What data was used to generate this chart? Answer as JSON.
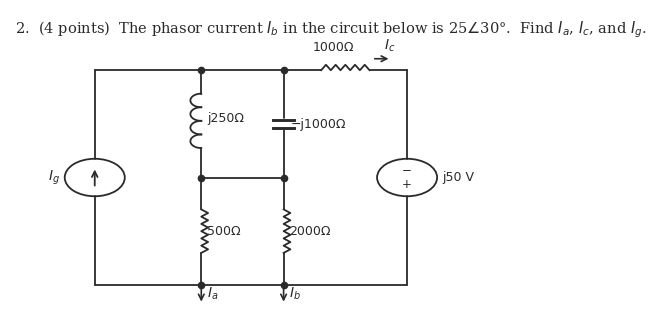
{
  "bg_color": "#ffffff",
  "line_color": "#2a2a2a",
  "text_color": "#2a2a2a",
  "title": "2.  (4 points)  The phasor current $I_b$ in the circuit below is 25$\\angle$30°.  Find $I_a$, $I_c$, and $I_g$.",
  "font_size_title": 10.5,
  "font_size_label": 9,
  "layout": {
    "L": 0.175,
    "R": 0.82,
    "T": 0.8,
    "B": 0.09,
    "M1": 0.395,
    "M2": 0.565
  },
  "labels": {
    "R1000": "1000Ω",
    "Ic": "I_c",
    "Rj250": "j250Ω",
    "Rmj1000": "−j1000Ω",
    "R500": "500Ω",
    "R2000": "2000Ω",
    "Ig": "I_g",
    "Ia": "I_a",
    "Ib": "I_b",
    "Vs": "j50 V"
  }
}
